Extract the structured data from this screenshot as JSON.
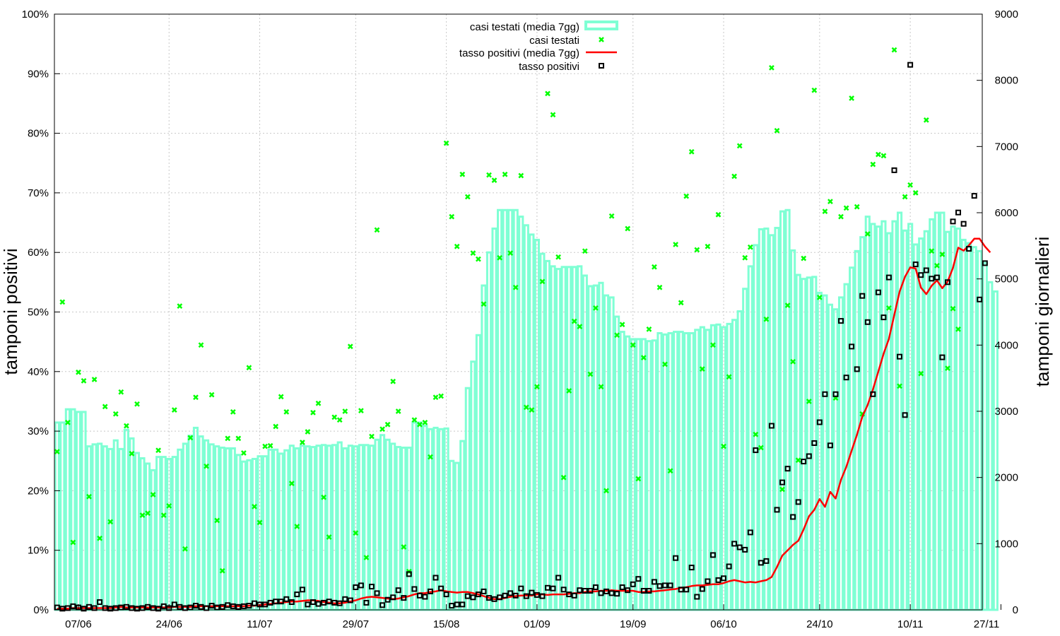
{
  "chart_data": {
    "type": "bar+line+scatter",
    "title": "",
    "ylabel_left": "tamponi positivi",
    "ylabel_right": "tamponi giornalieri",
    "x_tick_labels": [
      "07/06",
      "24/06",
      "11/07",
      "29/07",
      "15/08",
      "01/09",
      "19/09",
      "06/10",
      "24/10",
      "10/11",
      "27/11"
    ],
    "y_left_ticks": [
      "0%",
      "10%",
      "20%",
      "30%",
      "40%",
      "50%",
      "60%",
      "70%",
      "80%",
      "90%",
      "100%"
    ],
    "y_right_ticks": [
      "0",
      "1000",
      "2000",
      "3000",
      "4000",
      "5000",
      "6000",
      "7000",
      "8000",
      "9000"
    ],
    "y_left_range": [
      0,
      100
    ],
    "y_right_range": [
      0,
      9000
    ],
    "x_range_days": 174,
    "grid": true,
    "legend_position": "top-center",
    "legend": [
      {
        "label": "casi testati (media 7gg)",
        "style": "bar",
        "color": "#7fffd4"
      },
      {
        "label": "casi testati",
        "style": "points-x",
        "color": "#00ff00"
      },
      {
        "label": "tasso positivi (media 7gg)",
        "style": "line",
        "color": "#ff0000"
      },
      {
        "label": "tasso positivi",
        "style": "points-square",
        "color": "#000000"
      }
    ],
    "series": {
      "casi_testati_media": [
        2830,
        2830,
        3030,
        3030,
        2990,
        2990,
        2470,
        2500,
        2510,
        2470,
        2430,
        2560,
        2430,
        2720,
        2590,
        2370,
        2290,
        2210,
        2110,
        2310,
        2310,
        2280,
        2310,
        2420,
        2510,
        2630,
        2750,
        2620,
        2560,
        2500,
        2470,
        2450,
        2440,
        2440,
        2340,
        2240,
        2260,
        2280,
        2320,
        2320,
        2420,
        2420,
        2360,
        2410,
        2480,
        2440,
        2480,
        2470,
        2460,
        2480,
        2490,
        2480,
        2490,
        2530,
        2440,
        2480,
        2470,
        2490,
        2490,
        2480,
        2570,
        2640,
        2570,
        2510,
        2460,
        2450,
        2450,
        2830,
        2830,
        2780,
        2730,
        2750,
        2730,
        2740,
        2250,
        2220,
        2550,
        3350,
        3750,
        4150,
        4900,
        5400,
        5760,
        6040,
        6040,
        6040,
        6040,
        5940,
        5810,
        5670,
        5590,
        5380,
        5270,
        5190,
        5150,
        5180,
        5180,
        5180,
        5190,
        5050,
        4890,
        4900,
        4940,
        4750,
        4720,
        4430,
        4200,
        4130,
        4090,
        4090,
        4090,
        4060,
        4070,
        4180,
        4160,
        4180,
        4200,
        4200,
        4180,
        4180,
        4230,
        4270,
        4230,
        4300,
        4310,
        4270,
        4320,
        4380,
        4510,
        4850,
        5190,
        5510,
        5750,
        5760,
        5660,
        5770,
        6020,
        6040,
        5430,
        5060,
        5000,
        5020,
        5030,
        4790,
        4750,
        4610,
        4540,
        4720,
        4920,
        5170,
        5420,
        5630,
        5940,
        5830,
        5790,
        5870,
        5690,
        5870,
        6000,
        5730,
        5830,
        5520,
        5610,
        5720,
        5900,
        6000,
        6000,
        5710,
        5790,
        5760,
        5590,
        5540,
        5480,
        5420,
        5240,
        4950,
        4810
      ],
      "tasso_positivi_media": [
        0.2,
        0.2,
        0.2,
        0.3,
        0.3,
        0.3,
        0.3,
        0.3,
        0.3,
        0.3,
        0.3,
        0.4,
        0.5,
        0.4,
        0.4,
        0.4,
        0.4,
        0.4,
        0.4,
        0.4,
        0.4,
        0.4,
        0.5,
        0.5,
        0.5,
        0.5,
        0.6,
        0.6,
        0.6,
        0.6,
        0.6,
        0.6,
        0.6,
        0.6,
        0.6,
        0.6,
        0.7,
        0.7,
        0.8,
        0.9,
        1.0,
        1.1,
        1.2,
        1.3,
        1.4,
        1.4,
        1.5,
        1.6,
        1.6,
        1.5,
        1.3,
        1.2,
        1.1,
        1.1,
        1.2,
        1.4,
        1.6,
        1.9,
        2.1,
        2.2,
        2.1,
        2.0,
        1.9,
        1.8,
        1.9,
        2.1,
        2.3,
        2.6,
        2.8,
        2.8,
        3.0,
        3.1,
        3.3,
        3.1,
        3.0,
        2.9,
        3.0,
        3.0,
        2.8,
        2.6,
        2.3,
        2.0,
        1.8,
        1.8,
        2.0,
        2.2,
        2.3,
        2.4,
        2.4,
        2.4,
        2.6,
        2.6,
        2.5,
        2.6,
        2.6,
        2.6,
        2.7,
        2.8,
        2.8,
        3.0,
        3.1,
        3.1,
        3.2,
        3.2,
        3.3,
        3.2,
        3.2,
        3.2,
        3.2,
        3.0,
        3.0,
        3.1,
        3.1,
        3.2,
        3.3,
        3.4,
        3.5,
        3.7,
        3.8,
        4.0,
        4.1,
        4.1,
        4.2,
        4.3,
        4.3,
        4.5,
        4.8,
        5.0,
        4.8,
        4.6,
        4.7,
        4.6,
        4.8,
        5.0,
        5.5,
        7.2,
        9.1,
        10.0,
        10.9,
        11.6,
        13.5,
        15.7,
        16.8,
        18.6,
        17.3,
        19.8,
        18.7,
        21.8,
        24.0,
        26.7,
        29.4,
        32.4,
        34.4,
        37.0,
        40.0,
        43.0,
        45.5,
        49.5,
        53.4,
        55.9,
        57.5,
        57.3,
        54.1,
        53.0,
        54.4,
        55.3,
        54.0,
        55.1,
        57.4,
        60.8,
        60.3,
        61.2,
        62.3,
        62.3,
        61.0,
        60.0
      ],
      "tasso_positivi": [
        0.4,
        0.2,
        0.3,
        0.6,
        0.4,
        0.2,
        0.5,
        0.3,
        1.3,
        0.3,
        0.2,
        0.3,
        0.4,
        0.5,
        0.3,
        0.2,
        0.3,
        0.5,
        0.3,
        0.2,
        0.6,
        0.3,
        0.9,
        0.5,
        0.3,
        0.4,
        0.7,
        0.5,
        0.3,
        0.7,
        0.4,
        0.5,
        0.8,
        0.6,
        0.5,
        0.6,
        0.7,
        1.1,
        0.9,
        0.9,
        1.2,
        1.4,
        1.4,
        1.8,
        1.3,
        2.6,
        3.4,
        0.9,
        1.3,
        1.0,
        1.2,
        1.4,
        1.2,
        1.1,
        1.8,
        1.6,
        3.8,
        4.1,
        1.2,
        3.9,
        2.8,
        0.8,
        1.7,
        2.1,
        3.3,
        2.0,
        6.0,
        3.5,
        2.4,
        2.2,
        3.1,
        5.4,
        3.6,
        2.6,
        0.7,
        0.9,
        0.9,
        2.3,
        2.1,
        2.6,
        3.1,
        2.0,
        1.8,
        2.1,
        2.4,
        2.8,
        2.4,
        3.6,
        2.3,
        2.9,
        2.5,
        2.3,
        3.7,
        3.6,
        5.4,
        3.4,
        2.6,
        2.4,
        3.3,
        3.2,
        3.2,
        3.8,
        2.8,
        3.1,
        2.8,
        2.7,
        3.8,
        3.3,
        4.3,
        5.2,
        3.2,
        3.2,
        4.7,
        4.0,
        4.1,
        4.1,
        8.7,
        3.4,
        3.4,
        7.1,
        2.2,
        3.5,
        4.8,
        9.2,
        5.0,
        5.3,
        7.3,
        11.1,
        10.5,
        10.1,
        13.0,
        26.8,
        7.9,
        8.2,
        30.9,
        16.8,
        21.4,
        23.7,
        15.6,
        18.1,
        24.9,
        25.8,
        28.0,
        31.5,
        36.2,
        27.6,
        36.2,
        48.5,
        39.0,
        44.2,
        40.4,
        52.7,
        48.3,
        36.2,
        53.3,
        49.1,
        55.8,
        73.8,
        42.5,
        32.7,
        91.5,
        58.0,
        56.2,
        57.0,
        55.6,
        55.8,
        42.4,
        55.0,
        65.2,
        66.7,
        64.8,
        60.6,
        69.5,
        52.1,
        58.2
      ],
      "casi_testati": [
        2390,
        4650,
        2830,
        1020,
        3590,
        3460,
        1710,
        3480,
        1080,
        3070,
        1330,
        2960,
        3290,
        2780,
        2360,
        3110,
        1430,
        1460,
        1740,
        2410,
        1430,
        1570,
        3020,
        4590,
        920,
        2600,
        3210,
        4000,
        2170,
        3250,
        1350,
        590,
        2590,
        2990,
        2590,
        2370,
        3660,
        1560,
        1320,
        2470,
        2480,
        2770,
        3220,
        2990,
        1910,
        1260,
        2530,
        2690,
        2980,
        3120,
        1700,
        1100,
        2910,
        2870,
        3000,
        3980,
        1160,
        3010,
        790,
        2620,
        5740,
        2730,
        2800,
        3450,
        3000,
        950,
        580,
        2870,
        2800,
        2830,
        2310,
        3210,
        3230,
        7050,
        5940,
        5490,
        6580,
        6240,
        5390,
        5300,
        4620,
        6570,
        6490,
        5320,
        6580,
        5390,
        4870,
        6560,
        3060,
        3020,
        3370,
        4960,
        7800,
        7480,
        5330,
        2000,
        3310,
        4360,
        4280,
        5420,
        3560,
        4560,
        3370,
        1800,
        5950,
        4150,
        4310,
        5760,
        4000,
        1980,
        3810,
        4240,
        5180,
        4870,
        3710,
        2100,
        5520,
        4640,
        6250,
        6920,
        5440,
        3640,
        5490,
        4000,
        5970,
        2470,
        3520,
        6550,
        7010,
        5320,
        5480,
        2650,
        2450,
        4390,
        8190,
        7240,
        1820,
        4600,
        3750,
        2260,
        5310,
        3150,
        7850,
        4720,
        6020,
        6170,
        3200,
        5940,
        6070,
        7730,
        6090,
        2960,
        5680,
        6730,
        6880,
        6860,
        4560,
        8460,
        3380,
        6240,
        6420,
        6300,
        3570,
        7400,
        5420,
        5200,
        5370,
        3650,
        4550,
        4240
      ],
      "casi_testati_points_days": [
        0,
        1,
        2,
        3,
        4,
        5,
        6,
        7,
        8,
        9,
        10,
        11,
        12,
        13,
        14,
        15,
        16,
        17,
        18,
        19,
        20,
        21,
        22,
        23,
        24,
        25,
        26,
        27,
        28,
        29,
        30,
        31,
        32,
        33,
        34,
        35,
        36,
        37,
        38,
        39,
        40,
        41,
        42,
        43,
        44,
        45,
        46,
        47,
        48,
        49,
        50,
        51,
        52,
        53,
        54,
        55,
        56,
        57,
        58,
        59,
        60,
        61,
        62,
        63,
        64,
        65,
        66,
        67,
        68,
        69,
        70,
        71,
        72,
        73,
        74,
        75,
        76,
        77,
        78,
        79,
        80,
        81,
        82,
        83,
        84,
        85,
        86,
        87,
        88,
        89,
        90,
        91,
        92,
        93,
        94,
        95,
        96,
        97,
        98,
        99,
        100,
        101,
        102,
        103,
        104,
        105,
        106,
        107,
        108,
        109,
        110,
        111,
        112,
        113,
        114,
        115,
        116,
        117,
        118,
        119,
        120,
        121,
        122,
        123,
        124,
        125,
        126,
        127,
        128,
        129,
        130,
        131,
        132,
        133,
        134,
        135,
        136,
        137,
        138,
        139,
        140,
        141,
        142,
        143,
        144,
        145,
        146,
        147,
        148,
        149,
        150,
        151,
        152,
        153,
        154,
        155,
        156,
        157,
        158,
        159,
        160,
        161,
        162,
        163,
        164,
        165,
        166,
        167,
        168,
        169,
        170,
        171,
        172,
        173
      ]
    }
  }
}
